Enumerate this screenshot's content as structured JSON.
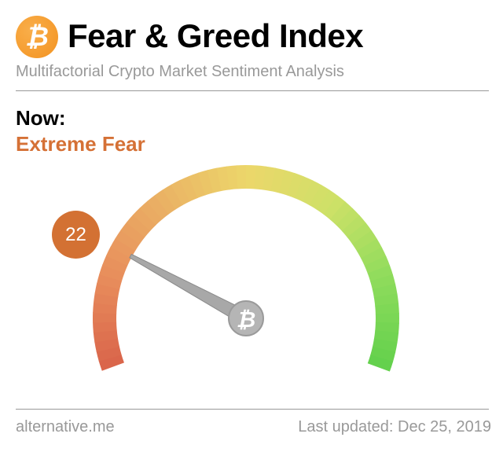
{
  "header": {
    "logo_icon": "bitcoin-icon",
    "title": "Fear & Greed Index",
    "subtitle": "Multifactorial Crypto Market Sentiment Analysis"
  },
  "current": {
    "label": "Now:",
    "classification": "Extreme Fear",
    "value": "22",
    "value_fraction": 0.22,
    "accent_color": "#d57136"
  },
  "gauge": {
    "min": 0,
    "max": 100,
    "colors": [
      "#d9644a",
      "#e88d5c",
      "#eab064",
      "#ecd66a",
      "#cfe168",
      "#8fdc5c",
      "#62d04c"
    ],
    "hub_icon": "bitcoin-icon"
  },
  "footer": {
    "source": "alternative.me",
    "updated": "Last updated: Dec 25, 2019"
  }
}
